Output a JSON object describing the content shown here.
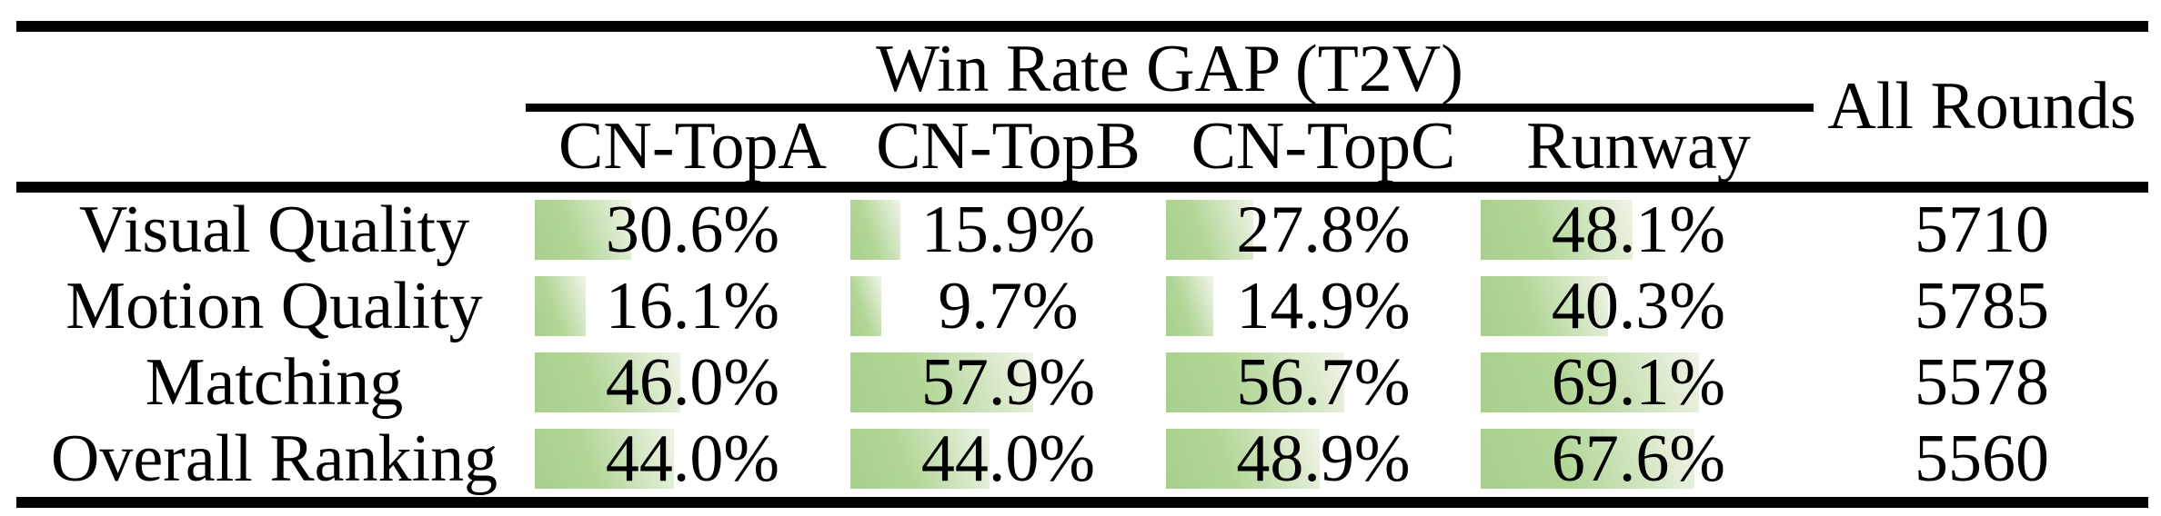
{
  "figure": {
    "header": {
      "group_title": "Win Rate GAP (T2V)",
      "all_rounds_label": "All Rounds",
      "columns": [
        "CN-TopA",
        "CN-TopB",
        "CN-TopC",
        "Runway"
      ]
    },
    "rows": [
      {
        "label": "Visual Quality",
        "cells": [
          {
            "text": "30.6%",
            "value": 30.6
          },
          {
            "text": "15.9%",
            "value": 15.9
          },
          {
            "text": "27.8%",
            "value": 27.8
          },
          {
            "text": "48.1%",
            "value": 48.1
          }
        ],
        "all_rounds": "5710"
      },
      {
        "label": "Motion Quality",
        "cells": [
          {
            "text": "16.1%",
            "value": 16.1
          },
          {
            "text": "9.7%",
            "value": 9.7
          },
          {
            "text": "14.9%",
            "value": 14.9
          },
          {
            "text": "40.3%",
            "value": 40.3
          }
        ],
        "all_rounds": "5785"
      },
      {
        "label": "Matching",
        "cells": [
          {
            "text": "46.0%",
            "value": 46.0
          },
          {
            "text": "57.9%",
            "value": 57.9
          },
          {
            "text": "56.7%",
            "value": 56.7
          },
          {
            "text": "69.1%",
            "value": 69.1
          }
        ],
        "all_rounds": "5578"
      },
      {
        "label": "Overall Ranking",
        "cells": [
          {
            "text": "44.0%",
            "value": 44.0
          },
          {
            "text": "44.0%",
            "value": 44.0
          },
          {
            "text": "48.9%",
            "value": 48.9
          },
          {
            "text": "67.6%",
            "value": 67.6
          }
        ],
        "all_rounds": "5560"
      }
    ],
    "colors": {
      "bar_green": "#aed694",
      "bar_fade": "#f0f4e8",
      "rule_black": "#000000",
      "background": "#ffffff"
    }
  },
  "chart_data": {
    "type": "table",
    "title": "Win Rate GAP (T2V)",
    "columns": [
      "CN-TopA",
      "CN-TopB",
      "CN-TopC",
      "Runway",
      "All Rounds"
    ],
    "categories": [
      "Visual Quality",
      "Motion Quality",
      "Matching",
      "Overall Ranking"
    ],
    "series": [
      {
        "name": "CN-TopA",
        "values": [
          30.6,
          16.1,
          46.0,
          44.0
        ]
      },
      {
        "name": "CN-TopB",
        "values": [
          15.9,
          9.7,
          57.9,
          44.0
        ]
      },
      {
        "name": "CN-TopC",
        "values": [
          27.8,
          14.9,
          56.7,
          48.9
        ]
      },
      {
        "name": "Runway",
        "values": [
          48.1,
          40.3,
          69.1,
          67.6
        ]
      }
    ],
    "all_rounds": [
      5710,
      5785,
      5578,
      5560
    ],
    "value_unit": "%",
    "layout": "in-cell data bars, bar width proportional to percentage of column width, left-aligned"
  }
}
